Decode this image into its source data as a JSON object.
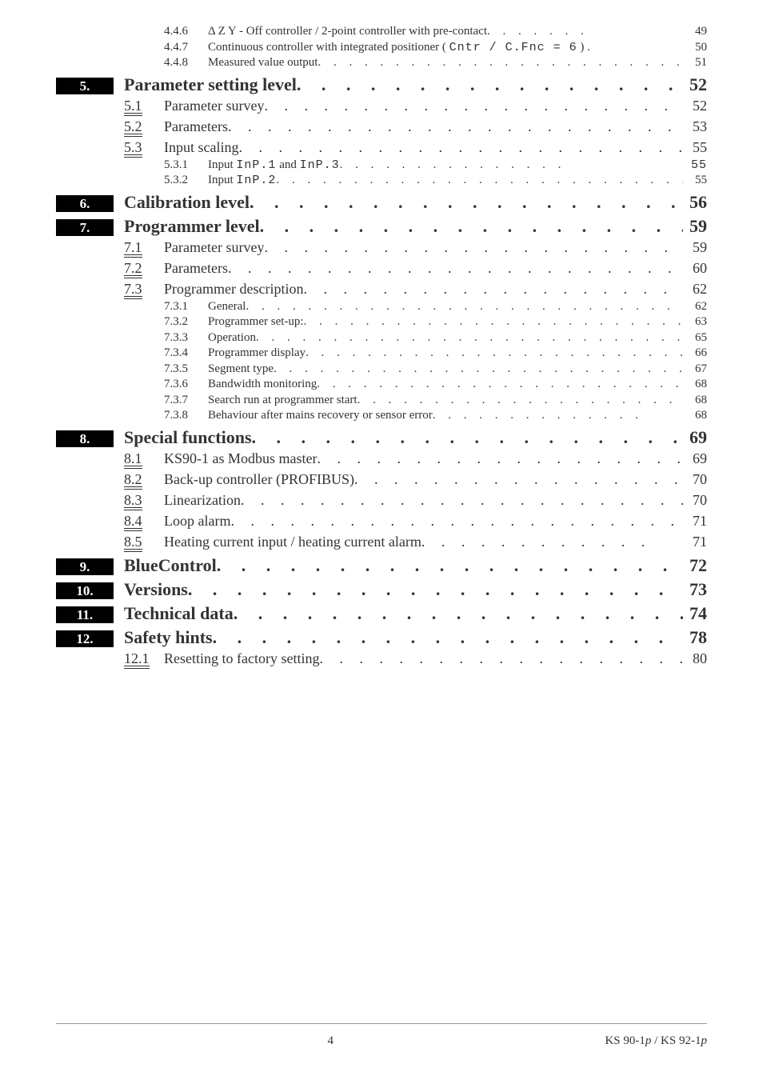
{
  "footer": {
    "page": "4",
    "doc": "KS 90-1",
    "doc2": " / KS 92-1"
  },
  "toc": [
    {
      "lvl": 3,
      "num": "4.4.6",
      "label": "Δ Z  Y - Off  controller / 2-point controller with pre-contact",
      "dots": ". . . . . . .",
      "pg": "49"
    },
    {
      "lvl": 3,
      "num": "4.4.7",
      "label": "Continuous controller with integrated positioner ( ",
      "seg": "Cntr / C.Fnc = 6",
      "label2": " ) .",
      "pg": "50"
    },
    {
      "lvl": 3,
      "num": "4.4.8",
      "label": "Measured value output",
      "dots": ". . . . . . . . . . . . . . . . . . . . . . . . . . .",
      "pg": "51"
    },
    {
      "lvl": 1,
      "num": "5.",
      "label": "Parameter setting level",
      "dots": " . . . . . . . . . . . . . . . . . . . . .",
      "pg": "52"
    },
    {
      "lvl": 2,
      "num": "5.1",
      "label": "Parameter survey",
      "dots": " . . . . . . . . . . . . . . . . . . . . . . . . . . .",
      "pg": "52"
    },
    {
      "lvl": 2,
      "num": "5.2",
      "label": "Parameters",
      "dots": " . . . . . . . . . . . . . . . . . . . . . . . . . . . . . .",
      "pg": "53"
    },
    {
      "lvl": 2,
      "num": "5.3",
      "label": "Input scaling",
      "dots": ". . . . . . . . . . . . . . . . . . . . . . . . . . . . . . .",
      "pg": "55"
    },
    {
      "lvl": 3,
      "num": "5.3.1",
      "label": "Input ",
      "seg": "InP.1",
      "label2": " and ",
      "seg2": "InP.3",
      "dots": ".   .   .   .   .   .   .   .   .   .   .   .   .   .   .",
      "pg": "55",
      "segpg": true
    },
    {
      "lvl": 3,
      "num": "5.3.2",
      "label": "Input ",
      "seg": "InP.2",
      "dots": "   . . . . . . . . . . . . . . . . . . . . . . . . . . . . . .",
      "pg": "55"
    },
    {
      "lvl": 1,
      "num": "6.",
      "label": "Calibration level",
      "dots": " . . . . . . . . . . . . . . . . . . . . . . . . .",
      "pg": "56"
    },
    {
      "lvl": 1,
      "num": "7.",
      "label": "Programmer level",
      "dots": " . . . . . . . . . . . . . . . . . . . . . . . .",
      "pg": "59"
    },
    {
      "lvl": 2,
      "num": "7.1",
      "label": "Parameter survey",
      "dots": "  . . . . . . . . . . . . . . . . . . . . . . . . . . .",
      "pg": "59"
    },
    {
      "lvl": 2,
      "num": "7.2",
      "label": "Parameters",
      "dots": "    . . . . . . . . . . . . . . . . . . . . . . . . . . . . .",
      "pg": "60"
    },
    {
      "lvl": 2,
      "num": "7.3",
      "label": "Programmer description",
      "dots": ". . . . . . . . . . . . . . . . . . . . . . . .",
      "pg": "62"
    },
    {
      "lvl": 3,
      "num": "7.3.1",
      "label": "General",
      "dots": ". . . . . . . . . . . . . . . . . . . . . . . . . . . . . . . . . . .",
      "pg": "62"
    },
    {
      "lvl": 3,
      "num": "7.3.2",
      "label": "Programmer set-up:",
      "dots": " . . . . . . . . . . . . . . . . . . . . . . . . . . . .",
      "pg": "63"
    },
    {
      "lvl": 3,
      "num": "7.3.3",
      "label": "Operation",
      "dots": " . . . . . . . . . . . . . . . . . . . . . . . . . . . . . . . . .",
      "pg": "65"
    },
    {
      "lvl": 3,
      "num": "7.3.4",
      "label": "Programmer display",
      "dots": " . . . . . . . . . . . . . . . . . . . . . . . . . . . .",
      "pg": "66"
    },
    {
      "lvl": 3,
      "num": "7.3.5",
      "label": "Segment type",
      "dots": ". . . . . . . . . . . . . . . . . . . . . . . . . . . . . . . .",
      "pg": "67"
    },
    {
      "lvl": 3,
      "num": "7.3.6",
      "label": "Bandwidth monitoring",
      "dots": "   . . . . . . . . . . . . . . . . . . . . . . . . .",
      "pg": "68"
    },
    {
      "lvl": 3,
      "num": "7.3.7",
      "label": "Search run at programmer start",
      "dots": " . . . . . . . . . . . . . . . . . . . . . .",
      "pg": "68"
    },
    {
      "lvl": 3,
      "num": "7.3.8",
      "label": "Behaviour after mains recovery or sensor error",
      "dots": " . . . . . . . . . . . . . .",
      "pg": "68"
    },
    {
      "lvl": 1,
      "num": "8.",
      "label": "Special functions",
      "dots": " . . . . . . . . . . . . . . . . . . . . . . . . .",
      "pg": "69"
    },
    {
      "lvl": 2,
      "num": "8.1",
      "label": "KS90-1 as Modbus master",
      "dots": " . . . . . . . . . . . . . . . . . . . . . .",
      "pg": "69"
    },
    {
      "lvl": 2,
      "num": "8.2",
      "label": "Back-up controller (PROFIBUS)",
      "dots": " . . . . . . . . . . . . . . . . . . .",
      "pg": "70"
    },
    {
      "lvl": 2,
      "num": "8.3",
      "label": "Linearization",
      "dots": ". . . . . . . . . . . . . . . . . . . . . . . . . . . . . .",
      "pg": "70"
    },
    {
      "lvl": 2,
      "num": "8.4",
      "label": "Loop alarm",
      "dots": "  . . . . . . . . . . . . . . . . . . . . . . . . . . . . . . .",
      "pg": "71"
    },
    {
      "lvl": 2,
      "num": "8.5",
      "label": "Heating current input / heating current alarm",
      "dots": ". . . . . . . . . . . .",
      "pg": "71"
    },
    {
      "lvl": 1,
      "num": "9.",
      "label": "BlueControl",
      "dots": " . . . . . . . . . . . . . . . . . . . . . . . . . . .",
      "pg": "72"
    },
    {
      "lvl": 1,
      "num": "10.",
      "label": "Versions",
      "dots": " . . . . . . . . . . . . . . . . . . . . . . . . . . . . .",
      "pg": "73"
    },
    {
      "lvl": 1,
      "num": "11.",
      "label": "Technical data",
      "dots": " . . . . . . . . . . . . . . . . . . . . . . . . . .",
      "pg": "74"
    },
    {
      "lvl": 1,
      "num": "12.",
      "label": "Safety hints",
      "dots": " . . . . . . . . . . . . . . . . . . . . . . . . . . . .",
      "pg": "78"
    },
    {
      "lvl": 2,
      "num": "12.1",
      "label": "Resetting to factory setting",
      "dots": " . . . . . . . . . . . . . . . . . . . . . .",
      "pg": "80"
    }
  ]
}
